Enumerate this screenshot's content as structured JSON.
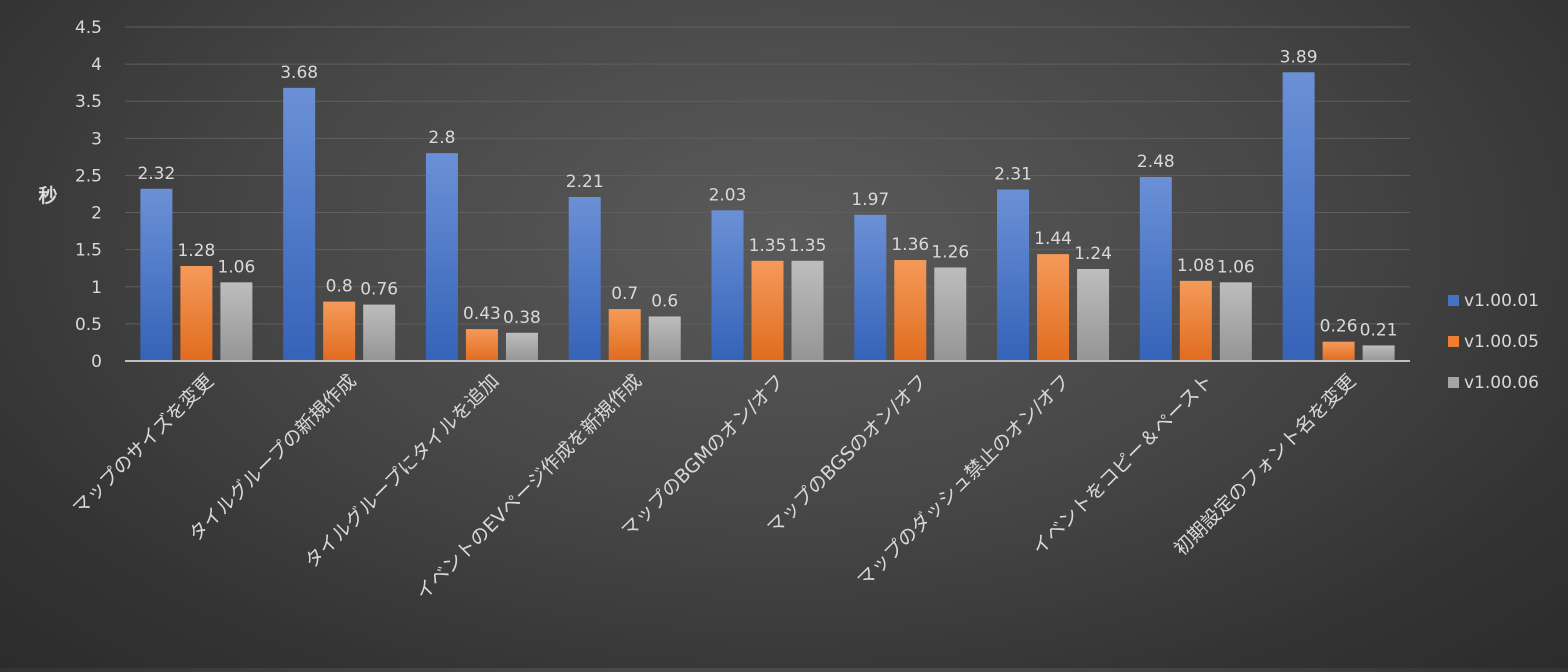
{
  "colors": {
    "gridline": "#5f5f5f",
    "axis": "#bfbfbf",
    "text": "#d9d9d9"
  },
  "chart_data": {
    "type": "bar",
    "title": "",
    "xlabel": "",
    "ylabel": "秒",
    "ylim": [
      0,
      4.5
    ],
    "ytick_step": 0.5,
    "yticks": [
      "0",
      "0.5",
      "1",
      "1.5",
      "2",
      "2.5",
      "3",
      "3.5",
      "4",
      "4.5"
    ],
    "grid": true,
    "legend_position": "right",
    "categories": [
      "マップのサイズを変更",
      "タイルグループの新規作成",
      "タイルグループにタイルを追加",
      "イベントのEVページ作成を新規作成",
      "マップのBGMのオン/オフ",
      "マップのBGSのオン/オフ",
      "マップのダッシュ禁止のオン/オフ",
      "イベントをコピー＆ペースト",
      "初期設定のフォント名を変更"
    ],
    "series": [
      {
        "name": "v1.00.01",
        "color": "#4472c4",
        "values": [
          2.32,
          3.68,
          2.8,
          2.21,
          2.03,
          1.97,
          2.31,
          2.48,
          3.89
        ]
      },
      {
        "name": "v1.00.05",
        "color": "#ed7d31",
        "values": [
          1.28,
          0.8,
          0.43,
          0.7,
          1.35,
          1.36,
          1.44,
          1.08,
          0.26
        ]
      },
      {
        "name": "v1.00.06",
        "color": "#a5a5a5",
        "values": [
          1.06,
          0.76,
          0.38,
          0.6,
          1.35,
          1.26,
          1.24,
          1.06,
          0.21
        ]
      }
    ]
  }
}
